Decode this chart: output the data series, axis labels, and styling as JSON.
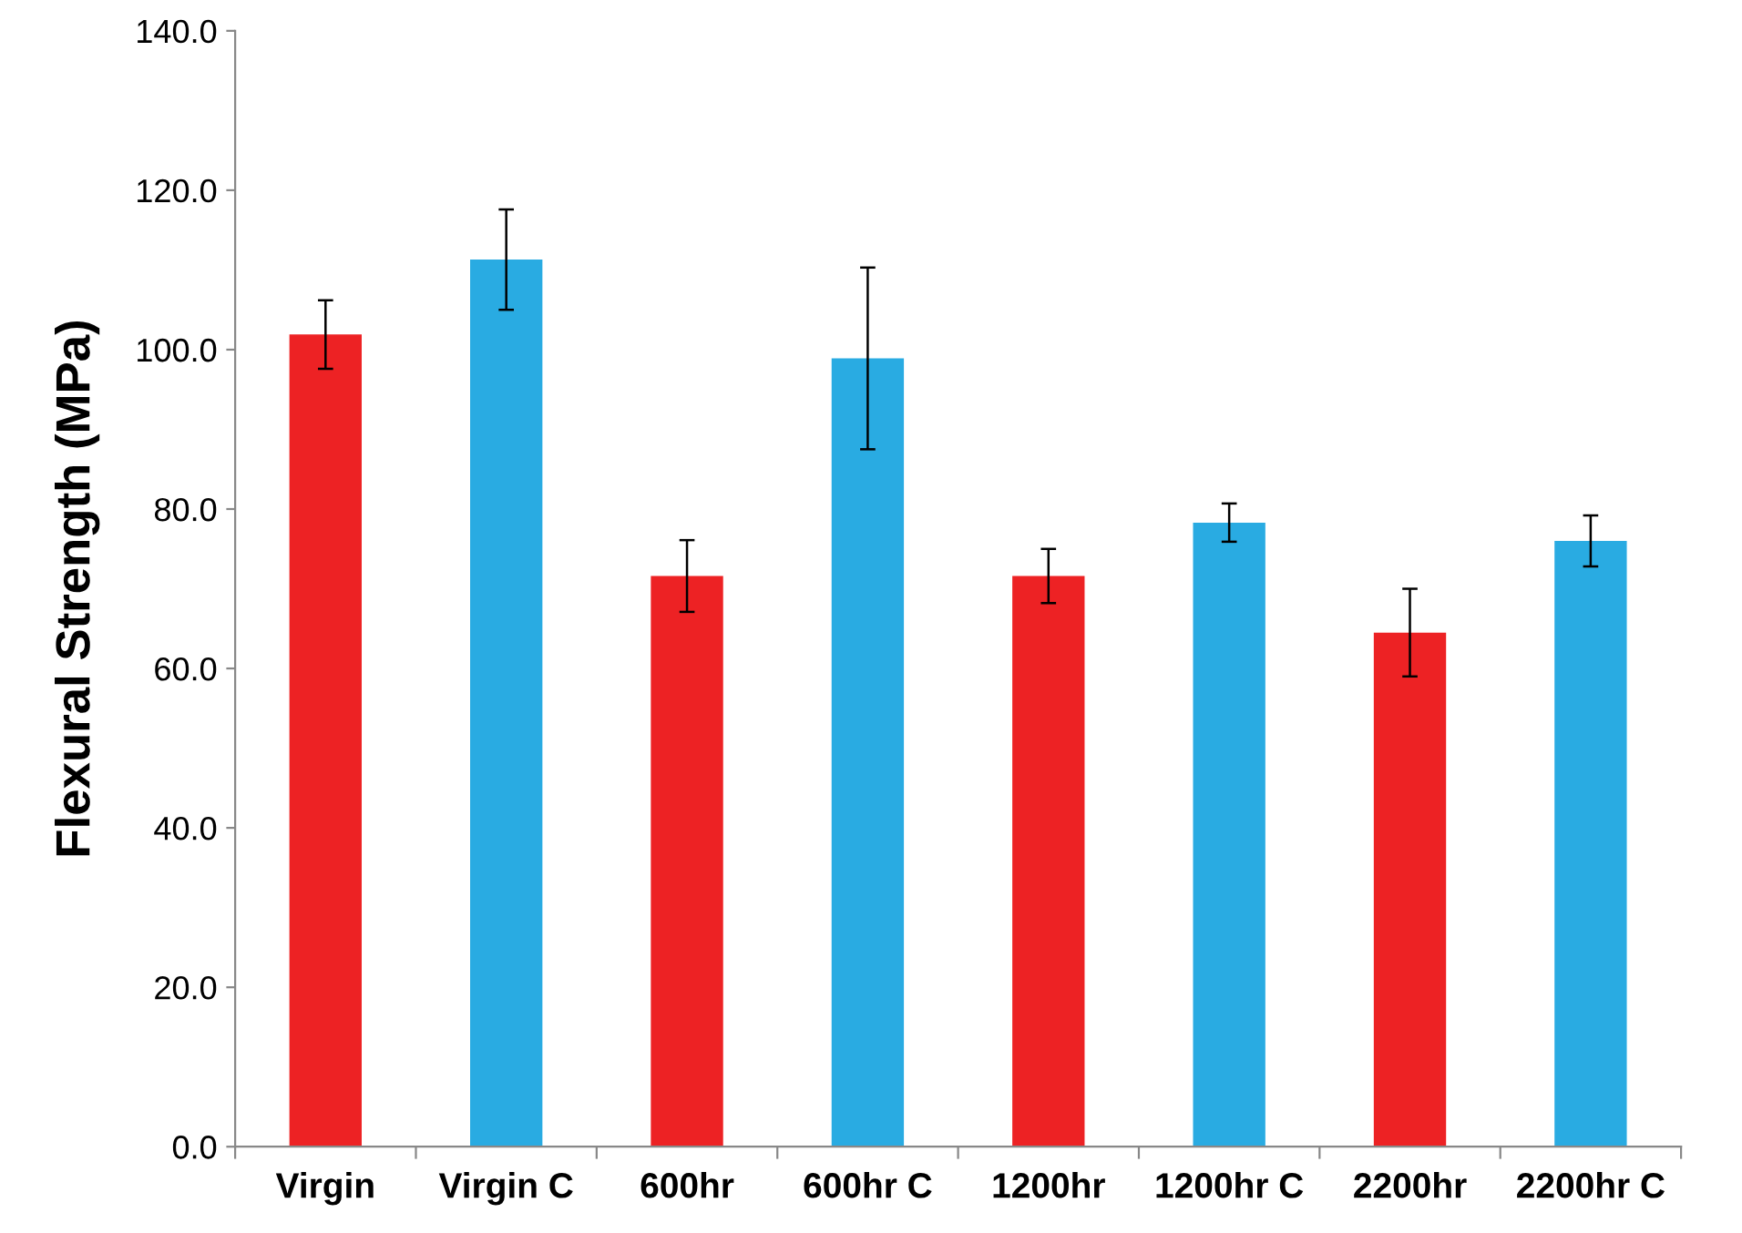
{
  "chart_data": {
    "type": "bar",
    "ylabel": "Flexural Strength (MPa)",
    "categories": [
      "Virgin",
      "Virgin C",
      "600hr",
      "600hr C",
      "1200hr",
      "1200hr C",
      "2200hr",
      "2200hr C"
    ],
    "values": [
      101.9,
      111.3,
      71.6,
      98.9,
      71.6,
      78.3,
      64.5,
      76.0
    ],
    "errors": [
      4.3,
      6.3,
      4.5,
      11.4,
      3.4,
      2.4,
      5.5,
      3.2
    ],
    "colors": [
      "#ed2224",
      "#29abe2",
      "#ed2224",
      "#29abe2",
      "#ed2224",
      "#29abe2",
      "#ed2224",
      "#29abe2"
    ],
    "ylim": [
      0,
      140
    ],
    "yticks": [
      {
        "value": 0,
        "label": "0.0"
      },
      {
        "value": 20,
        "label": "20.0"
      },
      {
        "value": 40,
        "label": "40.0"
      },
      {
        "value": 60,
        "label": "60.0"
      },
      {
        "value": 80,
        "label": "80.0"
      },
      {
        "value": 100,
        "label": "100.0"
      },
      {
        "value": 120,
        "label": "120.0"
      },
      {
        "value": 140,
        "label": "140.0"
      }
    ],
    "grid": false,
    "legend": false
  }
}
